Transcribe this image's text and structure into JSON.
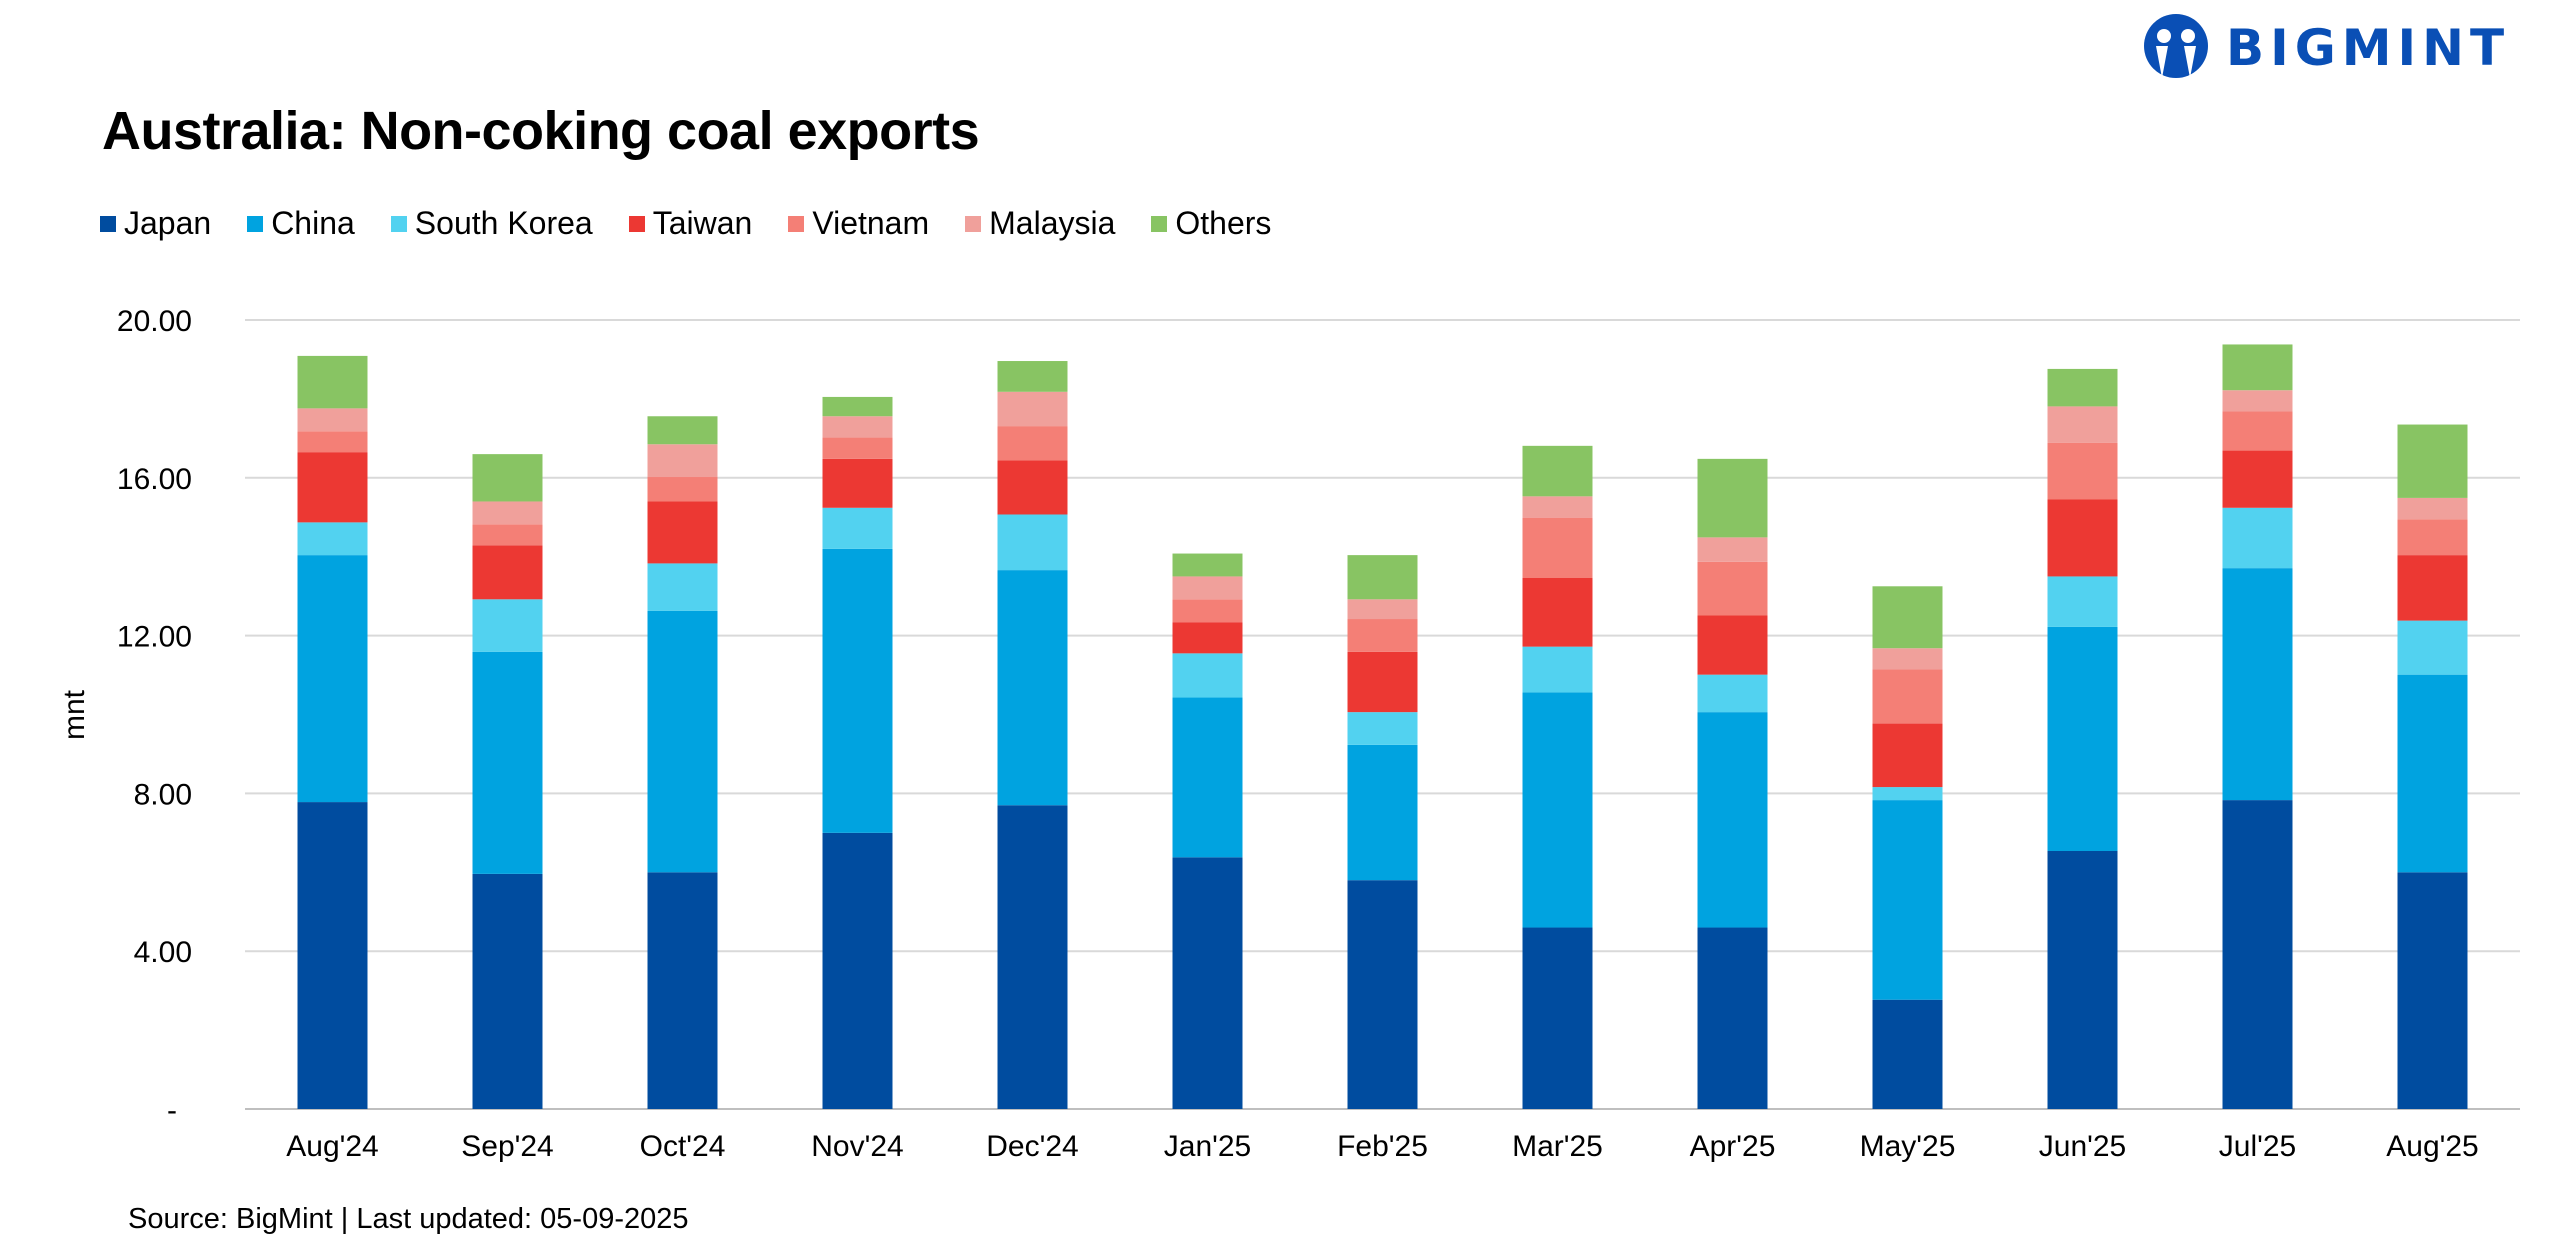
{
  "logo": {
    "text": "BIGMINT",
    "color": "#0a4fb5"
  },
  "source": "Source: BigMint | Last updated: 05-09-2025",
  "chart_data": {
    "type": "bar",
    "stacked": true,
    "title": "Australia: Non-coking coal exports",
    "xlabel": "",
    "ylabel": "mnt",
    "ylim": [
      0,
      20
    ],
    "yticks": [
      0,
      4,
      8,
      12,
      16,
      20
    ],
    "ytick_labels": [
      "-",
      "4.00",
      "8.00",
      "12.00",
      "16.00",
      "20.00"
    ],
    "grid": true,
    "legend_position": "top-left",
    "categories": [
      "Aug'24",
      "Sep'24",
      "Oct'24",
      "Nov'24",
      "Dec'24",
      "Jan'25",
      "Feb'25",
      "Mar'25",
      "Apr'25",
      "May'25",
      "Jun'25",
      "Jul'25",
      "Aug'25"
    ],
    "series": [
      {
        "name": "Japan",
        "color": "#004c9f",
        "values": [
          7.78,
          5.96,
          6.0,
          7.0,
          7.7,
          6.38,
          5.8,
          4.6,
          4.6,
          2.77,
          6.54,
          7.83,
          6.0
        ]
      },
      {
        "name": "China",
        "color": "#00a3e0",
        "values": [
          6.26,
          5.63,
          6.63,
          7.2,
          5.96,
          4.05,
          3.43,
          5.96,
          5.46,
          5.06,
          5.68,
          5.88,
          5.01
        ]
      },
      {
        "name": "South Korea",
        "color": "#52d2f0",
        "values": [
          0.83,
          1.33,
          1.2,
          1.04,
          1.41,
          1.12,
          0.83,
          1.16,
          0.95,
          0.33,
          1.28,
          1.53,
          1.37
        ]
      },
      {
        "name": "Taiwan",
        "color": "#ec3833",
        "values": [
          1.78,
          1.37,
          1.57,
          1.24,
          1.37,
          0.79,
          1.53,
          1.74,
          1.5,
          1.61,
          1.95,
          1.45,
          1.66
        ]
      },
      {
        "name": "Vietnam",
        "color": "#f47f76",
        "values": [
          0.53,
          0.53,
          0.62,
          0.54,
          0.87,
          0.58,
          0.83,
          1.53,
          1.36,
          1.37,
          1.44,
          0.99,
          0.91
        ]
      },
      {
        "name": "Malaysia",
        "color": "#f0a09b",
        "values": [
          0.58,
          0.58,
          0.83,
          0.54,
          0.87,
          0.58,
          0.5,
          0.54,
          0.62,
          0.54,
          0.92,
          0.54,
          0.54
        ]
      },
      {
        "name": "Others",
        "color": "#88c463",
        "values": [
          1.33,
          1.2,
          0.71,
          0.49,
          0.78,
          0.58,
          1.12,
          1.28,
          1.99,
          1.57,
          0.95,
          1.16,
          1.86
        ]
      }
    ]
  }
}
